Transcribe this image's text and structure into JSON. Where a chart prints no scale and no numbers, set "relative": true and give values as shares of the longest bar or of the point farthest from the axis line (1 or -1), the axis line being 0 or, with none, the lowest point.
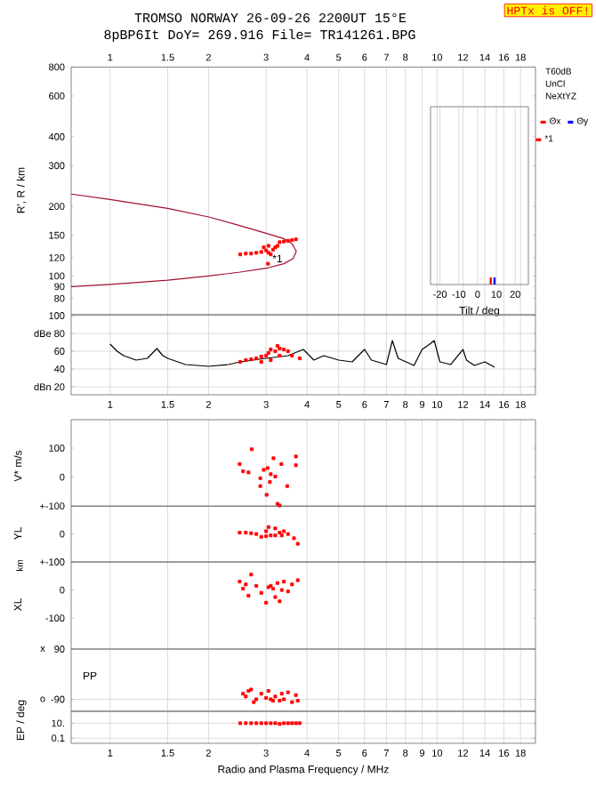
{
  "chart_data": [
    {
      "type": "scatter",
      "title": "TROMSO NORWAY   26-09-26 2200UT 15°E",
      "subtitle": "8pBP6It DoY= 269.916 File= TR141261.BPG",
      "ylabel": "R', R / km",
      "log": "xy",
      "grid": "x",
      "legend": "right",
      "xlim": [
        0.76,
        20
      ],
      "ylim": [
        68,
        800
      ],
      "xticks": [
        1,
        1.5,
        2,
        3,
        4,
        5,
        6,
        7,
        8,
        {
          "value": 9,
          "label": null
        },
        10,
        12,
        14,
        16,
        18
      ],
      "yticks": [
        800,
        600,
        400,
        300,
        200,
        150,
        120,
        100,
        90,
        80
      ],
      "annotations": [
        "HPTx is OFF!",
        {
          "text": "*1",
          "x": 3.25,
          "y": 119
        },
        "T60dB",
        "UnCl",
        "NeXtYZ"
      ],
      "series": [
        {
          "type": "line",
          "color": "#a01030",
          "x": [
            0.76,
            1,
            1.5,
            2,
            2.5,
            3,
            3.4,
            3.63,
            3.71,
            3.6,
            3.4,
            3,
            2.5,
            2,
            1.5,
            1,
            0.76
          ],
          "values": [
            90,
            92,
            96,
            100,
            104,
            108,
            113,
            119,
            128,
            138,
            145,
            153,
            165,
            180,
            196,
            214,
            226
          ]
        },
        {
          "name": "*1",
          "color": "#ff0000",
          "marker": "square",
          "x": [
            2.5,
            2.6,
            2.7,
            2.8,
            2.9,
            3.0,
            3.05,
            3.1,
            3.15,
            3.2,
            3.25,
            3.3,
            3.4,
            3.5,
            3.6,
            3.7,
            3.04,
            3.05,
            2.95
          ],
          "values": [
            124,
            125,
            125,
            126,
            127,
            129,
            126,
            124,
            130,
            133,
            135,
            140,
            141,
            142,
            143,
            144,
            113,
            135,
            133
          ]
        }
      ]
    },
    {
      "type": "bar",
      "relative": true,
      "xlabel": "Tilt / deg",
      "grid": "x",
      "legend": "right",
      "xlim": [
        -25,
        27
      ],
      "xticks": [
        -20,
        -10,
        0,
        10,
        20
      ],
      "series": [
        {
          "name": "Θx",
          "color": "#ff0000",
          "x": [
            7
          ],
          "values": [
            1
          ]
        },
        {
          "name": "Θy",
          "color": "#0000ff",
          "x": [
            9
          ],
          "values": [
            1
          ]
        }
      ]
    },
    {
      "type": "scatter",
      "log": "x",
      "grid": true,
      "xlim": [
        0.76,
        20
      ],
      "ylim": [
        11,
        101
      ],
      "xticks": [
        1,
        1.5,
        2,
        3,
        4,
        5,
        6,
        7,
        8,
        9,
        10,
        12,
        14,
        16,
        18
      ],
      "yticks": [
        100,
        {
          "value": 80,
          "label": "dBe 80"
        },
        60,
        {
          "value": 40,
          "label": "40"
        },
        {
          "value": 20,
          "label": "dBn 20"
        }
      ],
      "series": [
        {
          "type": "line",
          "color": "#000000",
          "x": [
            1.0,
            1.05,
            1.1,
            1.2,
            1.3,
            1.39,
            1.45,
            1.5,
            1.7,
            2.0,
            2.3,
            2.5,
            3.0,
            3.5,
            3.9,
            4.2,
            4.5,
            5.0,
            5.5,
            6.0,
            6.3,
            7.0,
            7.3,
            7.6,
            8.5,
            9.0,
            9.5,
            9.8,
            10.2,
            11.0,
            12.0,
            12.3,
            13.0,
            14.0,
            15.0
          ],
          "values": [
            68,
            60,
            55,
            50,
            52,
            63,
            55,
            52,
            45,
            43,
            45,
            48,
            52,
            55,
            62,
            50,
            55,
            50,
            48,
            62,
            50,
            45,
            72,
            52,
            44,
            62,
            68,
            72,
            48,
            45,
            62,
            50,
            44,
            48,
            42
          ]
        },
        {
          "color": "#ff0000",
          "marker": "square",
          "x": [
            2.5,
            2.6,
            2.7,
            2.8,
            2.9,
            3.0,
            3.05,
            3.1,
            3.2,
            3.25,
            3.3,
            3.4,
            3.5,
            3.3,
            3.6,
            3.8,
            2.9,
            3.1
          ],
          "values": [
            48,
            50,
            51,
            52,
            54,
            55,
            58,
            62,
            60,
            66,
            63,
            62,
            60,
            55,
            55,
            52,
            48,
            50
          ]
        }
      ]
    },
    {
      "type": "scatter",
      "ylabel": "V* m/s",
      "log": "x",
      "grid": "x",
      "marker": "square",
      "tick_labels": "y",
      "xlim": [
        0.76,
        20
      ],
      "ylim": [
        -100,
        198
      ],
      "xticks": [
        1,
        1.5,
        2,
        3,
        4,
        5,
        6,
        7,
        8,
        9,
        10,
        12,
        14,
        16,
        18
      ],
      "yticks": [
        100,
        0,
        {
          "value": -100,
          "label": "+-100"
        }
      ],
      "series": [
        {
          "color": "#ff0000",
          "x": [
            2.49,
            2.55,
            2.65,
            2.71,
            3.03,
            3.16,
            3.34,
            3.7,
            3.7,
            2.88,
            3.08,
            3.2,
            3.48,
            2.88,
            3.01,
            3.25,
            3.3,
            3.1,
            2.95
          ],
          "values": [
            45,
            20,
            16,
            96,
            31,
            65,
            45,
            71,
            41,
            -4,
            -17,
            2,
            -31,
            -31,
            -61,
            -92,
            -98,
            10,
            25
          ]
        }
      ]
    },
    {
      "type": "scatter",
      "ylabel": "YL",
      "log": "x",
      "grid": "x",
      "marker": "square",
      "tick_labels": "y",
      "xlim": [
        0.76,
        20
      ],
      "ylim": [
        -100,
        100
      ],
      "xticks": [
        1,
        1.5,
        2,
        3,
        4,
        5,
        6,
        7,
        8,
        9,
        10,
        12,
        14,
        16,
        18
      ],
      "yticks": [
        0,
        {
          "value": -100,
          "label": "+-100"
        }
      ],
      "series": [
        {
          "color": "#ff0000",
          "x": [
            2.49,
            2.6,
            2.7,
            2.8,
            2.9,
            3.0,
            3.05,
            3.1,
            3.2,
            3.3,
            3.35,
            3.4,
            3.5,
            3.65,
            3.75,
            3.0,
            3.2
          ],
          "values": [
            5,
            5,
            3,
            0,
            -10,
            10,
            25,
            -5,
            20,
            5,
            -5,
            10,
            0,
            -15,
            -35,
            -8,
            -5
          ]
        }
      ]
    },
    {
      "type": "scatter",
      "ylabel": "XL",
      "log": "x",
      "grid": "x",
      "marker": "square",
      "tick_labels": "y",
      "xlim": [
        0.76,
        20
      ],
      "ylim": [
        -210,
        100
      ],
      "xticks": [
        1,
        1.5,
        2,
        3,
        4,
        5,
        6,
        7,
        8,
        9,
        10,
        12,
        14,
        16,
        18
      ],
      "yticks": [
        0,
        -100
      ],
      "annotations": [
        "km"
      ],
      "series": [
        {
          "color": "#ff0000",
          "x": [
            2.49,
            2.6,
            2.7,
            2.55,
            2.65,
            2.8,
            2.9,
            3.0,
            3.05,
            3.1,
            3.2,
            3.25,
            3.3,
            3.35,
            3.4,
            3.5,
            3.6,
            3.75,
            3.15
          ],
          "values": [
            30,
            20,
            55,
            5,
            -20,
            15,
            -10,
            -45,
            10,
            15,
            -25,
            25,
            -40,
            0,
            30,
            -5,
            20,
            35,
            5
          ]
        }
      ]
    },
    {
      "type": "scatter",
      "ylabel": "PP",
      "log": "x",
      "grid": true,
      "marker": "square",
      "tick_labels": "y",
      "xlim": [
        0.76,
        20
      ],
      "ylim": [
        -133,
        90
      ],
      "xticks": [
        1,
        1.5,
        2,
        3,
        4,
        5,
        6,
        7,
        8,
        9,
        10,
        12,
        14,
        16,
        18
      ],
      "yticks": [
        90,
        -90
      ],
      "annotations": [
        "x",
        "o"
      ],
      "series": [
        {
          "color": "#ff0000",
          "x": [
            2.55,
            2.6,
            2.65,
            2.7,
            2.8,
            2.9,
            3.0,
            3.05,
            3.1,
            3.2,
            3.3,
            3.35,
            3.4,
            3.5,
            3.6,
            3.7,
            3.75,
            2.75,
            3.15
          ],
          "values": [
            -70,
            -80,
            -60,
            -55,
            -90,
            -70,
            -85,
            -60,
            -90,
            -80,
            -95,
            -70,
            -90,
            -65,
            -100,
            -75,
            -95,
            -100,
            -95
          ]
        }
      ]
    },
    {
      "type": "scatter",
      "ylabel": "EP / deg",
      "xlabel": "Radio and Plasma Frequency / MHz",
      "log": "xy",
      "grid": true,
      "marker": "square",
      "xlim": [
        0.76,
        20
      ],
      "ylim": [
        0.02,
        400
      ],
      "xticks": [
        1,
        1.5,
        2,
        3,
        4,
        5,
        6,
        7,
        8,
        9,
        10,
        12,
        14,
        16,
        18
      ],
      "yticks": [
        {
          "value": 10,
          "label": "10."
        },
        0.1
      ],
      "series": [
        {
          "color": "#ff0000",
          "x": [
            2.5,
            2.6,
            2.7,
            2.8,
            2.9,
            3.0,
            3.1,
            3.2,
            3.3,
            3.4,
            3.5,
            3.6,
            3.7,
            3.8
          ],
          "values": [
            10,
            10,
            10,
            10,
            10,
            10,
            10,
            10,
            8,
            10,
            10,
            10,
            10,
            10
          ]
        }
      ]
    }
  ]
}
